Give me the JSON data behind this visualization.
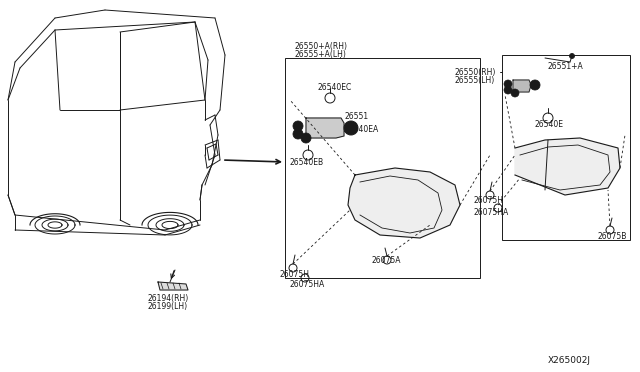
{
  "bg_color": "#ffffff",
  "line_color": "#1a1a1a",
  "text_color": "#1a1a1a",
  "diagram_id": "X265002J",
  "parts": {
    "26194_RH": "26194(RH)",
    "26199_LH": "26199(LH)",
    "26550_A_RH": "26550+A(RH)",
    "26555_A_LH": "26555+A(LH)",
    "26540EC": "26540EC",
    "26551": "26551",
    "26540EA": "26540EA",
    "26540EB": "26540EB",
    "26075H_1": "26075H",
    "26075HA_1": "26075HA",
    "26075A": "26075A",
    "26550_RH": "26550(RH)",
    "26555_LH": "26555(LH)",
    "26551_A": "26551+A",
    "26540E": "26540E",
    "26075H_2": "26075H",
    "26075HA_2": "26075HA",
    "26075B": "26075B"
  }
}
